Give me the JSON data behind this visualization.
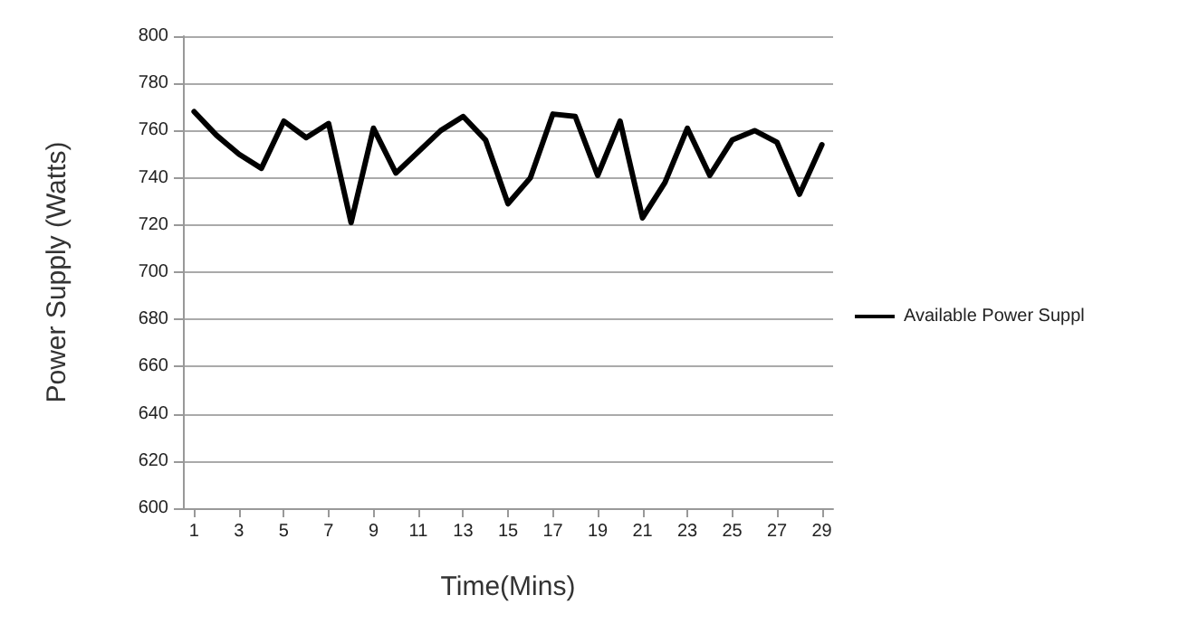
{
  "chart_data": {
    "type": "line",
    "xlabel": "Time(Mins)",
    "ylabel": "Power Supply (Watts)",
    "x": [
      1,
      2,
      3,
      4,
      5,
      6,
      7,
      8,
      9,
      10,
      11,
      12,
      13,
      14,
      15,
      16,
      17,
      18,
      19,
      20,
      21,
      22,
      23,
      24,
      25,
      26,
      27,
      28,
      29
    ],
    "series": [
      {
        "name": "Available Power Suppl",
        "color": "#000000",
        "values": [
          768,
          758,
          750,
          744,
          764,
          757,
          763,
          721,
          761,
          742,
          751,
          760,
          766,
          756,
          729,
          740,
          767,
          766,
          741,
          764,
          723,
          738,
          761,
          741,
          756,
          760,
          755,
          733,
          754
        ]
      }
    ],
    "xlim": [
      0.5,
      29.5
    ],
    "xticks": [
      1,
      3,
      5,
      7,
      9,
      11,
      13,
      15,
      17,
      19,
      21,
      23,
      25,
      27,
      29
    ],
    "ylim": [
      600,
      800
    ],
    "yticks": [
      600,
      620,
      640,
      660,
      680,
      700,
      720,
      740,
      760,
      780,
      800
    ],
    "grid": "y",
    "legend": "right",
    "marker": "none",
    "line_style": "solid"
  }
}
